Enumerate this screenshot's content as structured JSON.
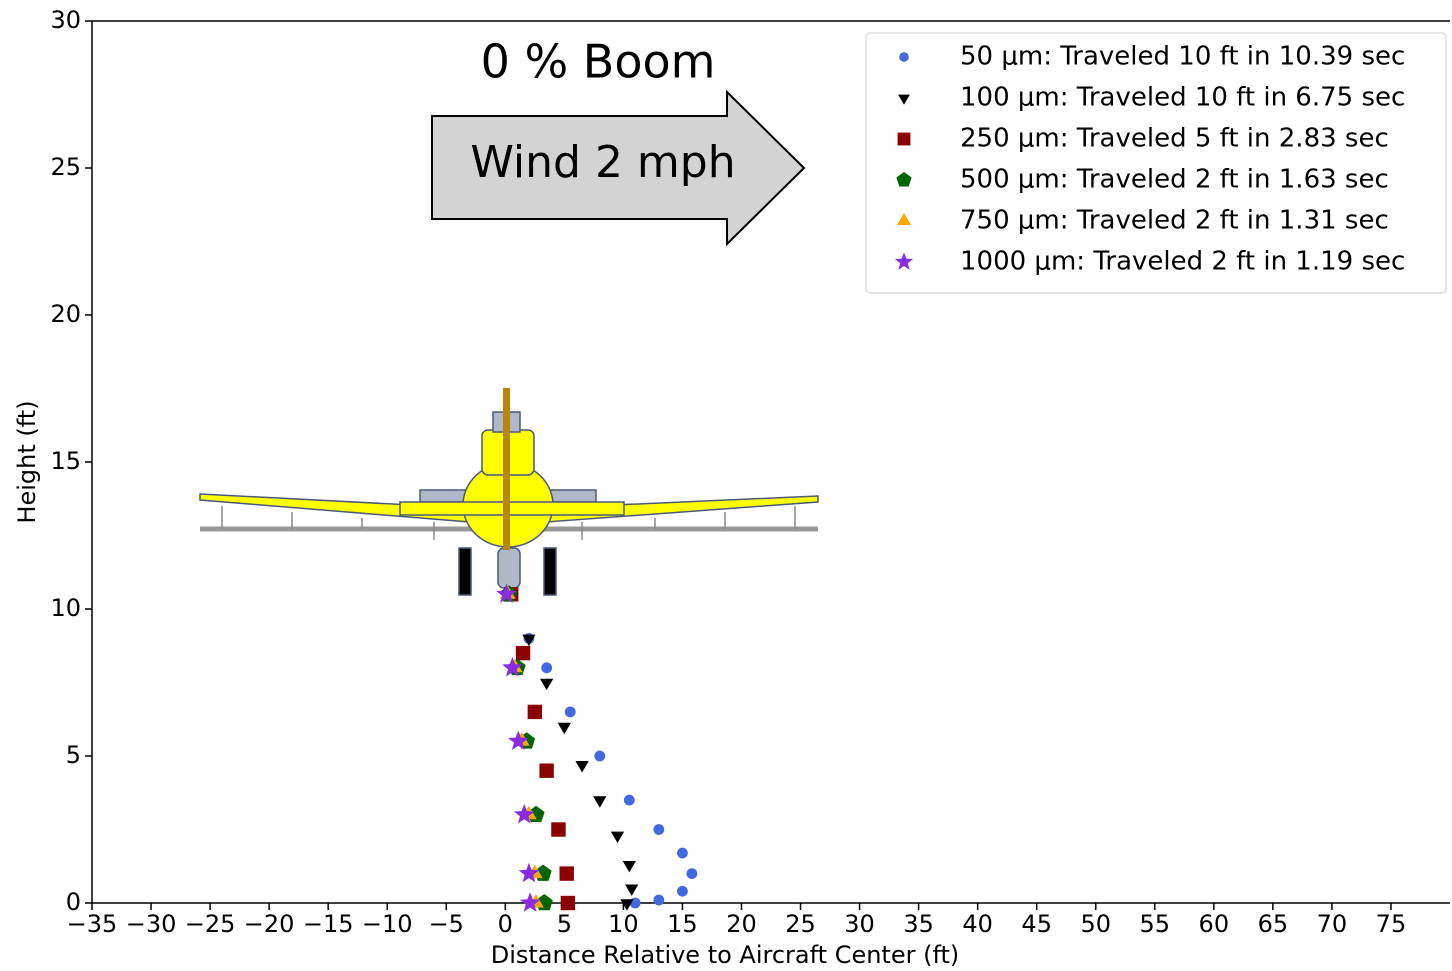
{
  "chart_data": {
    "type": "scatter",
    "boom_label": "0 % Boom",
    "wind_label": "Wind 2 mph",
    "xlabel": "Distance Relative to Aircraft Center (ft)",
    "ylabel": "Height (ft)",
    "xlim": [
      -35,
      80
    ],
    "ylim": [
      0,
      30
    ],
    "xticks": [
      {
        "value": -35,
        "label": "−35"
      },
      {
        "value": -30,
        "label": "−30"
      },
      {
        "value": -25,
        "label": "−25"
      },
      {
        "value": -20,
        "label": "−20"
      },
      {
        "value": -15,
        "label": "−15"
      },
      {
        "value": -10,
        "label": "−10"
      },
      {
        "value": -5,
        "label": "−5"
      },
      0,
      5,
      10,
      15,
      20,
      25,
      30,
      35,
      40,
      45,
      50,
      55,
      60,
      65,
      70,
      75
    ],
    "yticks": [
      0,
      5,
      10,
      15,
      20,
      25,
      30
    ],
    "legend": "upper right",
    "series": [
      {
        "name": "50 μm:  Traveled 10 ft in 10.39 sec",
        "color": "#4169e1",
        "marker": "o",
        "x": [
          0.5,
          2,
          3.5,
          5.5,
          8,
          10.5,
          13,
          15,
          15.8,
          15,
          13,
          11
        ],
        "y": [
          10.5,
          9,
          8,
          6.5,
          5,
          3.5,
          2.5,
          1.7,
          1,
          0.4,
          0.1,
          0
        ]
      },
      {
        "name": "100 μm:  Traveled 10 ft in 6.75 sec",
        "color": "#000000",
        "marker": "v",
        "x": [
          0.5,
          2,
          3.5,
          5,
          6.5,
          8,
          9.5,
          10.5,
          10.7,
          10.3
        ],
        "y": [
          10.5,
          9,
          7.5,
          6,
          4.7,
          3.5,
          2.3,
          1.3,
          0.5,
          0
        ]
      },
      {
        "name": "250 μm:  Traveled 5 ft in 2.83 sec",
        "color": "#8b0000",
        "marker": "s",
        "x": [
          0.5,
          1.5,
          2.5,
          3.5,
          4.5,
          5.2,
          5.3
        ],
        "y": [
          10.5,
          8.5,
          6.5,
          4.5,
          2.5,
          1,
          0
        ]
      },
      {
        "name": "500 μm:  Traveled 2 ft in 1.63 sec",
        "color": "#006400",
        "marker": "p",
        "x": [
          0.3,
          1,
          1.8,
          2.6,
          3.2,
          3.3
        ],
        "y": [
          10.5,
          8,
          5.5,
          3,
          1,
          0
        ]
      },
      {
        "name": "750 μm:  Traveled 2 ft in 1.31 sec",
        "color": "#ffa500",
        "marker": "^",
        "x": [
          0.2,
          0.8,
          1.4,
          2,
          2.5,
          2.6
        ],
        "y": [
          10.5,
          8,
          5.5,
          3,
          1,
          0
        ]
      },
      {
        "name": "1000 μm:  Traveled 2 ft in 1.19 sec",
        "color": "#8a2be2",
        "marker": "*",
        "x": [
          0.1,
          0.6,
          1.1,
          1.6,
          2,
          2.1
        ],
        "y": [
          10.5,
          8,
          5.5,
          3,
          1,
          0
        ]
      }
    ]
  }
}
